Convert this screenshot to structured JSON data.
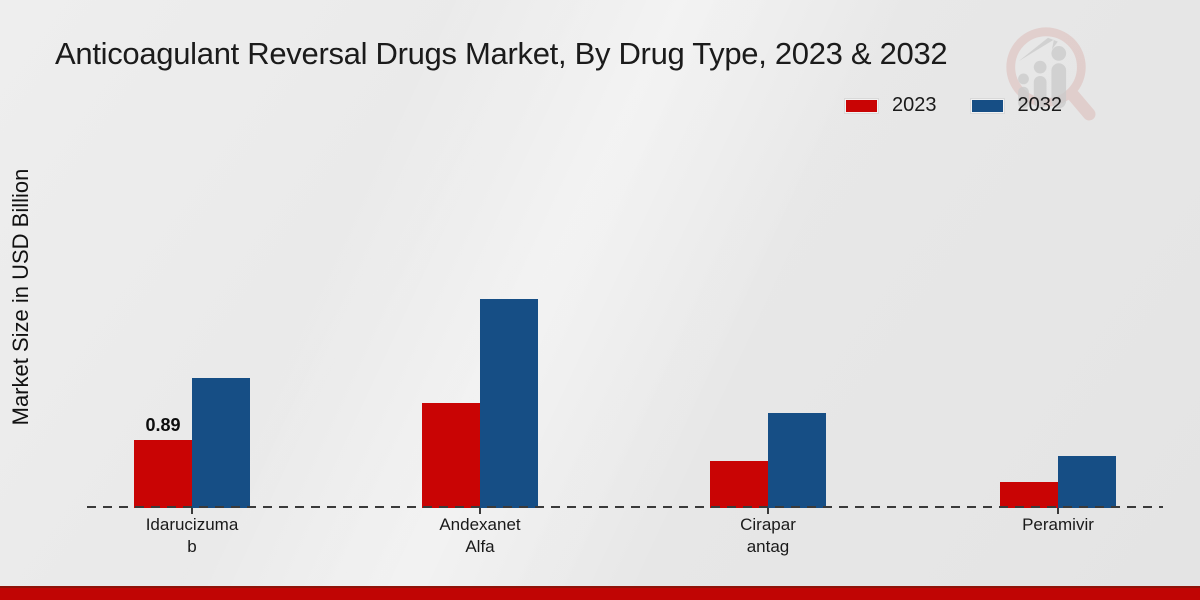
{
  "chart_data": {
    "type": "bar",
    "title": "Anticoagulant Reversal Drugs Market, By Drug Type, 2023 & 2032",
    "ylabel": "Market Size in USD Billion",
    "xlabel": "",
    "categories": [
      "Idarucizumab",
      "Andexanet Alfa",
      "Cirapar antag",
      "Peramivir"
    ],
    "category_label_lines": [
      [
        "Idarucizuma",
        "b"
      ],
      [
        "Andexanet",
        "Alfa"
      ],
      [
        "Cirapar",
        "antag"
      ],
      [
        "Peramivir"
      ]
    ],
    "series": [
      {
        "name": "2023",
        "color": "#c90404",
        "values": [
          0.89,
          1.37,
          0.62,
          0.34
        ]
      },
      {
        "name": "2032",
        "color": "#164e85",
        "values": [
          1.7,
          2.74,
          1.24,
          0.68
        ]
      }
    ],
    "annotations": [
      {
        "series": "2023",
        "category": "Idarucizumab",
        "text": "0.89"
      }
    ],
    "ylim": [
      0,
      3
    ],
    "grid": false,
    "axis_line_style": "dashed",
    "legend_position": "top-right"
  },
  "watermark": {
    "icon": "magnifier-growth-chart-logo",
    "ring_color": "#d8a9a5",
    "figure_color": "#c6c6c6"
  },
  "footer": {
    "strip_color": "#c00504"
  }
}
